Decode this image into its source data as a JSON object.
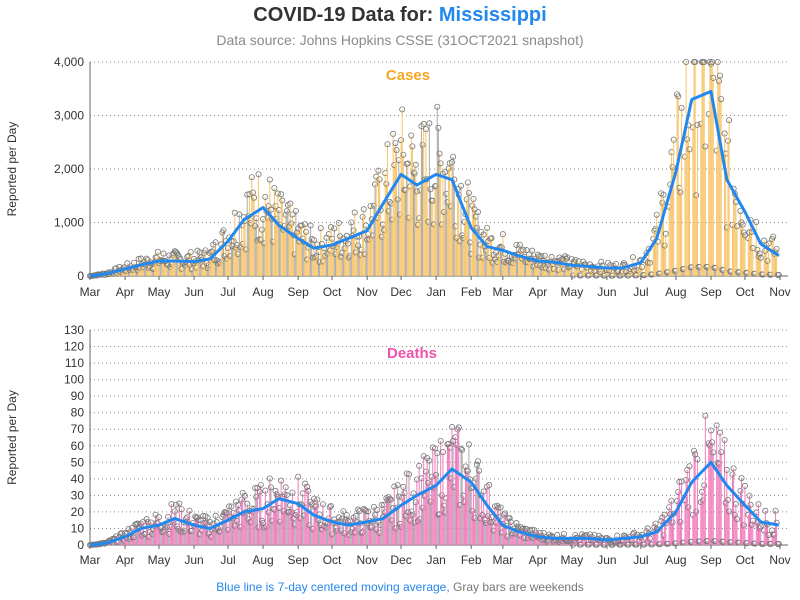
{
  "title": {
    "prefix": "COVID-19 Data for:",
    "state": "Mississippi"
  },
  "subtitle": "Data source: Johns Hopkins CSSE (31OCT2021 snapshot)",
  "footnote": {
    "blue": "Blue line is 7-day centered moving average,",
    "gray": "Gray bars are weekends"
  },
  "colors": {
    "cases": "#f5a623",
    "cases_bar": "#f7c46a",
    "deaths": "#ee55aa",
    "deaths_bar": "#f07cbd",
    "average_line": "#2288ee",
    "weekend_bar": "#aaaaaa",
    "title_state": "#2288ee"
  },
  "chart_data": [
    {
      "type": "bar",
      "title": "Cases",
      "ylabel": "Reported per Day",
      "ylim": [
        0,
        4000
      ],
      "yticks": [
        "0",
        "1,000",
        "2,000",
        "3,000",
        "4,000"
      ],
      "xticks": [
        "Mar",
        "Apr",
        "May",
        "Jun",
        "Jul",
        "Aug",
        "Sep",
        "Oct",
        "Nov",
        "Dec",
        "Jan",
        "Feb",
        "Mar",
        "Apr",
        "May",
        "Jun",
        "Jul",
        "Aug",
        "Sep",
        "Oct",
        "Nov"
      ],
      "grid": "horizontal dotted",
      "series": [
        {
          "name": "7-day centered moving average",
          "x": [
            "2020-03-01",
            "2020-03-15",
            "2020-04-01",
            "2020-04-15",
            "2020-05-01",
            "2020-05-15",
            "2020-06-01",
            "2020-06-15",
            "2020-07-01",
            "2020-07-15",
            "2020-08-01",
            "2020-08-15",
            "2020-09-01",
            "2020-09-15",
            "2020-10-01",
            "2020-10-15",
            "2020-11-01",
            "2020-11-15",
            "2020-12-01",
            "2020-12-15",
            "2021-01-01",
            "2021-01-15",
            "2021-02-01",
            "2021-02-15",
            "2021-03-01",
            "2021-03-15",
            "2021-04-01",
            "2021-04-15",
            "2021-05-01",
            "2021-05-15",
            "2021-06-01",
            "2021-06-15",
            "2021-07-01",
            "2021-07-15",
            "2021-08-01",
            "2021-08-15",
            "2021-09-01",
            "2021-09-15",
            "2021-10-01",
            "2021-10-15",
            "2021-10-31"
          ],
          "values": [
            0,
            40,
            130,
            210,
            280,
            280,
            270,
            320,
            650,
            1050,
            1280,
            950,
            700,
            520,
            580,
            700,
            850,
            1350,
            1900,
            1700,
            1900,
            1800,
            900,
            550,
            480,
            380,
            280,
            260,
            200,
            180,
            150,
            150,
            250,
            700,
            1950,
            3300,
            3450,
            1800,
            1200,
            600,
            380
          ]
        }
      ]
    },
    {
      "type": "bar",
      "title": "Deaths",
      "ylabel": "Reported per Day",
      "ylim": [
        0,
        130
      ],
      "yticks": [
        "0",
        "10",
        "20",
        "30",
        "40",
        "50",
        "60",
        "70",
        "80",
        "90",
        "100",
        "110",
        "120",
        "130"
      ],
      "xticks": [
        "Mar",
        "Apr",
        "May",
        "Jun",
        "Jul",
        "Aug",
        "Sep",
        "Oct",
        "Nov",
        "Dec",
        "Jan",
        "Feb",
        "Mar",
        "Apr",
        "May",
        "Jun",
        "Jul",
        "Aug",
        "Sep",
        "Oct",
        "Nov"
      ],
      "grid": "horizontal dotted",
      "series": [
        {
          "name": "7-day centered moving average",
          "x": [
            "2020-03-01",
            "2020-03-15",
            "2020-04-01",
            "2020-04-15",
            "2020-05-01",
            "2020-05-15",
            "2020-06-01",
            "2020-06-15",
            "2020-07-01",
            "2020-07-15",
            "2020-08-01",
            "2020-08-15",
            "2020-09-01",
            "2020-09-15",
            "2020-10-01",
            "2020-10-15",
            "2020-11-01",
            "2020-11-15",
            "2020-12-01",
            "2020-12-15",
            "2021-01-01",
            "2021-01-15",
            "2021-02-01",
            "2021-02-15",
            "2021-03-01",
            "2021-03-15",
            "2021-04-01",
            "2021-04-15",
            "2021-05-01",
            "2021-05-15",
            "2021-06-01",
            "2021-06-15",
            "2021-07-01",
            "2021-07-15",
            "2021-08-01",
            "2021-08-15",
            "2021-09-01",
            "2021-09-15",
            "2021-10-01",
            "2021-10-15",
            "2021-10-31"
          ],
          "values": [
            0,
            1,
            5,
            10,
            12,
            16,
            12,
            10,
            15,
            20,
            22,
            28,
            25,
            18,
            14,
            12,
            14,
            16,
            24,
            30,
            36,
            46,
            38,
            24,
            12,
            8,
            5,
            4,
            4,
            4,
            3,
            4,
            5,
            8,
            20,
            38,
            50,
            36,
            24,
            14,
            12
          ]
        }
      ]
    }
  ]
}
